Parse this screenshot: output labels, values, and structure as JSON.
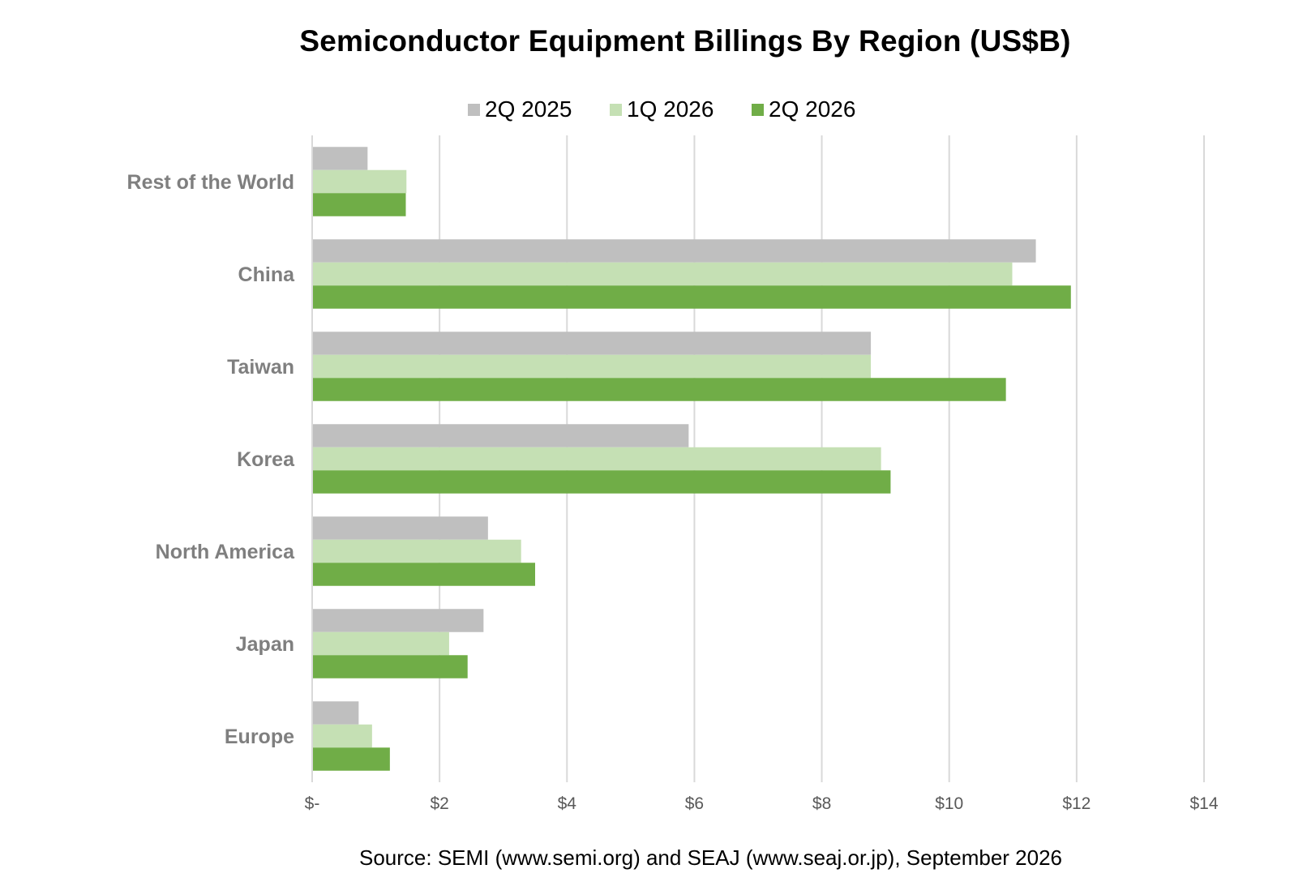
{
  "chart_data": {
    "type": "bar",
    "orientation": "horizontal",
    "title": "Semiconductor Equipment Billings By Region (US$B)",
    "categories": [
      "Rest of the World",
      "China",
      "Taiwan",
      "Korea",
      "North America",
      "Japan",
      "Europe"
    ],
    "series": [
      {
        "name": "2Q 2025",
        "color": "#bfbfbf",
        "values": [
          0.87,
          11.36,
          8.77,
          5.91,
          2.76,
          2.69,
          0.73
        ]
      },
      {
        "name": "1Q 2026",
        "color": "#c5e0b4",
        "values": [
          1.48,
          10.99,
          8.77,
          8.93,
          3.28,
          2.15,
          0.94
        ]
      },
      {
        "name": "2Q 2026",
        "color": "#70ad47",
        "values": [
          1.47,
          11.91,
          10.89,
          9.08,
          3.5,
          2.44,
          1.22
        ]
      }
    ],
    "xlim": [
      0,
      14
    ],
    "xticks": [
      0,
      2,
      4,
      6,
      8,
      10,
      12,
      14
    ],
    "xtick_labels": [
      "$-",
      "$2",
      "$4",
      "$6",
      "$8",
      "$10",
      "$12",
      "$14"
    ],
    "xlabel": "",
    "ylabel": "",
    "grid": "vertical",
    "legend_position": "top-center",
    "source": "Source: SEMI (www.semi.org) and SEAJ (www.seaj.or.jp), September 2026"
  }
}
